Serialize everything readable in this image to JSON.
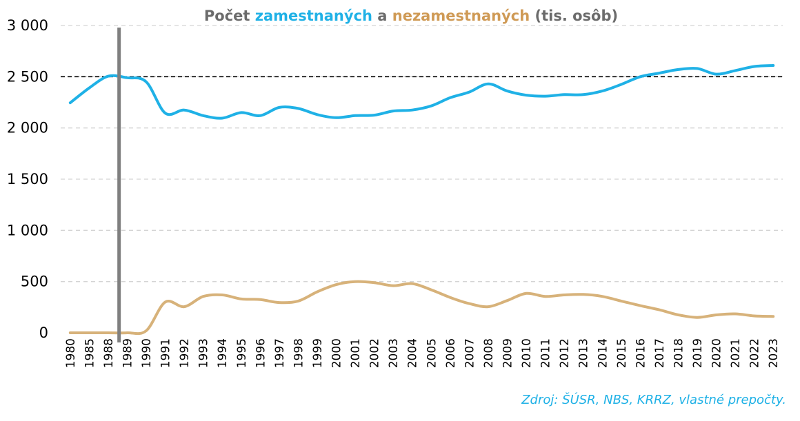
{
  "chart_data": {
    "type": "line",
    "title_parts": [
      {
        "text": "Počet ",
        "color": "#6b6b6b"
      },
      {
        "text": "zamestnaných",
        "color": "#1fb1e6"
      },
      {
        "text": " a ",
        "color": "#6b6b6b"
      },
      {
        "text": "nezamestnaných",
        "color": "#cf9a55"
      },
      {
        "text": " (tis. osôb)",
        "color": "#6b6b6b"
      }
    ],
    "categories": [
      "1980",
      "1985",
      "1988",
      "1989",
      "1990",
      "1991",
      "1992",
      "1993",
      "1994",
      "1995",
      "1996",
      "1997",
      "1998",
      "1999",
      "2000",
      "2001",
      "2002",
      "2003",
      "2004",
      "2005",
      "2006",
      "2007",
      "2008",
      "2009",
      "2010",
      "2011",
      "2012",
      "2013",
      "2014",
      "2015",
      "2016",
      "2017",
      "2018",
      "2019",
      "2020",
      "2021",
      "2022",
      "2023"
    ],
    "yticks": [
      "0",
      "500",
      "1 000",
      "1 500",
      "2 000",
      "2 500",
      "3 000"
    ],
    "ylim": [
      0,
      3000
    ],
    "reference_line": 2500,
    "marker_category": "1989",
    "grid": true,
    "series": [
      {
        "color": "#1fb1e6",
        "values": [
          2245,
          2390,
          2505,
          2490,
          2450,
          2145,
          2175,
          2120,
          2095,
          2150,
          2120,
          2200,
          2190,
          2130,
          2100,
          2120,
          2125,
          2165,
          2175,
          2215,
          2295,
          2350,
          2430,
          2360,
          2320,
          2310,
          2325,
          2325,
          2360,
          2425,
          2500,
          2535,
          2570,
          2580,
          2525,
          2560,
          2600,
          2610
        ]
      },
      {
        "color": "#d7b27a",
        "values": [
          0,
          0,
          0,
          0,
          20,
          300,
          255,
          355,
          370,
          330,
          325,
          295,
          310,
          400,
          470,
          500,
          490,
          460,
          480,
          420,
          345,
          285,
          255,
          315,
          385,
          355,
          370,
          375,
          355,
          310,
          265,
          225,
          175,
          150,
          175,
          185,
          165,
          160
        ]
      }
    ]
  },
  "source_text": "Zdroj: ŠÚSR, NBS, KRRZ, vlastné prepočty."
}
